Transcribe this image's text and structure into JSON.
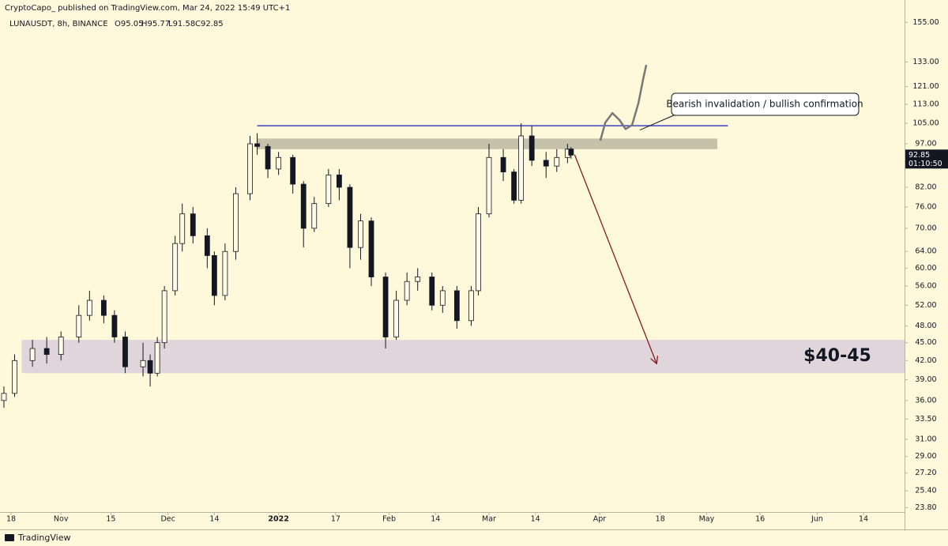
{
  "chart_data": {
    "type": "candlestick",
    "header": "CryptoCapo_ published on TradingView.com, Mar 24, 2022 15:49 UTC+1",
    "legend": "LUNAUSDT, 8h, BINANCE",
    "ohlc_labels": [
      "O95.05",
      "H95.77",
      "L91.58",
      "C92.85"
    ],
    "last_price_label": "92.85",
    "countdown": "01:10:50",
    "footer": "TradingView",
    "log_scale": true,
    "grid": false,
    "up_color": "#fffbe6",
    "down_color": "#131722",
    "x": [
      -2,
      1,
      6,
      10,
      14,
      19,
      22,
      26,
      29,
      32,
      37,
      39,
      41,
      43,
      46,
      48,
      51,
      55,
      57,
      60,
      63,
      67,
      69,
      72,
      75,
      79,
      82,
      85,
      89,
      92,
      95,
      98,
      101,
      105,
      108,
      111,
      114,
      118,
      121,
      125,
      129,
      131,
      134,
      138,
      141,
      143,
      146,
      150,
      153,
      156,
      157
    ],
    "open": [
      36,
      37,
      42,
      44,
      43,
      46,
      50,
      53,
      50,
      46,
      41,
      42,
      40,
      45,
      55,
      66,
      74,
      68,
      63,
      54,
      64,
      80,
      97,
      96,
      88,
      92,
      83,
      70,
      77,
      86,
      82,
      65,
      72,
      58,
      46,
      53,
      57,
      58,
      52,
      55,
      49,
      55,
      74,
      92,
      87,
      78,
      100,
      91,
      89,
      92,
      95.05
    ],
    "high": [
      38,
      43,
      45.5,
      46,
      47,
      52,
      55,
      54,
      51,
      47,
      45,
      43,
      46,
      56,
      68,
      77,
      76,
      70,
      64,
      66,
      82,
      100,
      101,
      97,
      94,
      93,
      84,
      79,
      88,
      88,
      83,
      74,
      73,
      59,
      55,
      59,
      60,
      59,
      56,
      56,
      56,
      76,
      97,
      95,
      88,
      105,
      104,
      94,
      95,
      97,
      95.77
    ],
    "low": [
      35,
      36.5,
      41,
      41.5,
      42,
      45,
      49,
      48.5,
      45,
      40,
      39.5,
      38,
      39.5,
      44,
      54,
      64,
      66,
      60,
      52,
      53,
      62,
      78,
      93,
      85,
      86,
      80,
      65,
      69,
      76,
      78,
      60,
      62,
      56,
      44,
      45.5,
      52,
      55,
      51,
      50.5,
      47.5,
      48,
      54,
      73,
      84,
      77,
      77,
      89,
      85,
      87,
      90,
      91.58
    ],
    "close": [
      37,
      42,
      44,
      43,
      46,
      50,
      53,
      50,
      46,
      41,
      42,
      40,
      45,
      55,
      66,
      74,
      68,
      63,
      54,
      64,
      80,
      97,
      96,
      88,
      92,
      83,
      70,
      77,
      86,
      82,
      65,
      72,
      58,
      46,
      53,
      57,
      58,
      52,
      55,
      49,
      55,
      74,
      92,
      87,
      78,
      100,
      91,
      89,
      92,
      95,
      92.85
    ],
    "xlim": [
      -3.1,
      250.5
    ],
    "xticks": [
      {
        "value": 0,
        "label": "18"
      },
      {
        "value": 14,
        "label": "Nov"
      },
      {
        "value": 28,
        "label": "15"
      },
      {
        "value": 44,
        "label": "Dec"
      },
      {
        "value": 57,
        "label": "14"
      },
      {
        "value": 75,
        "label": "2022"
      },
      {
        "value": 91,
        "label": "17"
      },
      {
        "value": 106,
        "label": "Feb"
      },
      {
        "value": 119,
        "label": "14"
      },
      {
        "value": 134,
        "label": "Mar"
      },
      {
        "value": 147,
        "label": "14"
      },
      {
        "value": 165,
        "label": "Apr"
      },
      {
        "value": 182,
        "label": "18"
      },
      {
        "value": 195,
        "label": "May"
      },
      {
        "value": 210,
        "label": "16"
      },
      {
        "value": 226,
        "label": "Jun"
      },
      {
        "value": 239,
        "label": "14"
      }
    ],
    "ylim": [
      23.4,
      159
    ],
    "yticks": [
      {
        "value": 155,
        "label": "155.00"
      },
      {
        "value": 133,
        "label": "133.00"
      },
      {
        "value": 121,
        "label": "121.00"
      },
      {
        "value": 113,
        "label": "113.00"
      },
      {
        "value": 105,
        "label": "105.00"
      },
      {
        "value": 97,
        "label": "97.00"
      },
      {
        "value": 82,
        "label": "82.00"
      },
      {
        "value": 76,
        "label": "76.00"
      },
      {
        "value": 70,
        "label": "70.00"
      },
      {
        "value": 64,
        "label": "64.00"
      },
      {
        "value": 60,
        "label": "60.00"
      },
      {
        "value": 56,
        "label": "56.00"
      },
      {
        "value": 52,
        "label": "52.00"
      },
      {
        "value": 48,
        "label": "48.00"
      },
      {
        "value": 45,
        "label": "45.00"
      },
      {
        "value": 42,
        "label": "42.00"
      },
      {
        "value": 39,
        "label": "39.00"
      },
      {
        "value": 36,
        "label": "36.00"
      },
      {
        "value": 33.5,
        "label": "33.50"
      },
      {
        "value": 31,
        "label": "31.00"
      },
      {
        "value": 29,
        "label": "29.00"
      },
      {
        "value": 27.2,
        "label": "27.20"
      },
      {
        "value": 25.4,
        "label": "25.40"
      },
      {
        "value": 23.8,
        "label": "23.80"
      }
    ],
    "annotations": {
      "resistance_line": {
        "price": 104,
        "x": [
          69,
          201
        ],
        "color": "#3f3fbf"
      },
      "resistance_zone": {
        "low": 95,
        "high": 99,
        "x": [
          69,
          198
        ],
        "color": "#b8b49e"
      },
      "support_zone": {
        "low": 40,
        "high": 45.5,
        "x": [
          3,
          250.5
        ],
        "color": "#dccfdc"
      },
      "support_label": "$40-45",
      "arrow": {
        "from": [
          158,
          93
        ],
        "to": [
          181,
          41.5
        ],
        "color": "#8b1a1a"
      },
      "path": {
        "x": [
          165.2,
          166.6,
          168.6,
          170.6,
          172.3,
          174.1,
          175.9,
          177.2,
          178.1
        ],
        "price": [
          98.2,
          105.3,
          109.2,
          106.3,
          102.7,
          104.3,
          113.6,
          124.5,
          131.5
        ],
        "color": "#777777"
      },
      "callout": {
        "text": "Bearish invalidation / bullish confirmation",
        "x": 176.3,
        "price": 102.3
      }
    }
  }
}
